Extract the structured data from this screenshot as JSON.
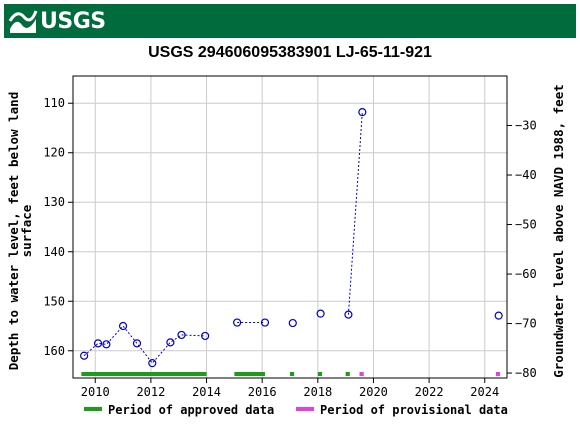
{
  "header": {
    "logo_text": "USGS",
    "banner_color": "#006b3c"
  },
  "chart_data": {
    "type": "scatter",
    "title": "USGS 294606095383901 LJ-65-11-921",
    "ylabel_left_line1": "Depth to water level, feet below land",
    "ylabel_left_line2": "surface",
    "ylabel_right": "Groundwater level above NAVD 1988, feet",
    "xlim": [
      2009.2,
      2024.8
    ],
    "ylim_left": [
      165.5,
      104.5
    ],
    "ylim_right": [
      -81,
      -20
    ],
    "x_ticks": [
      "2010",
      "2012",
      "2014",
      "2016",
      "2018",
      "2020",
      "2022",
      "2024"
    ],
    "y_left_ticks": [
      "110",
      "120",
      "130",
      "140",
      "150",
      "160"
    ],
    "y_right_ticks": [
      "-30",
      "-40",
      "-50",
      "-60",
      "-70",
      "-80"
    ],
    "grid": true,
    "marker_color": "#0000cc",
    "series": [
      {
        "x": [
          2009.6,
          2010.1,
          2010.4,
          2011.0,
          2011.5,
          2012.05,
          2012.7,
          2013.1,
          2013.95,
          2015.1,
          2016.1,
          2017.1,
          2018.1,
          2019.1,
          2019.6,
          2024.5
        ],
        "y": [
          161.0,
          158.5,
          158.7,
          155.0,
          158.5,
          162.5,
          158.3,
          156.8,
          157.0,
          154.3,
          154.3,
          154.4,
          152.5,
          152.7,
          111.8,
          152.9
        ]
      }
    ],
    "connected_segments": [
      [
        0,
        8
      ],
      [
        9,
        10
      ],
      [
        13,
        14
      ]
    ],
    "periods": {
      "approved": {
        "label": "Period of approved data",
        "color": "#1a9e1a",
        "ranges": [
          [
            2009.5,
            2014.0
          ],
          [
            2015.0,
            2016.1
          ],
          [
            2017.0,
            2017.15
          ],
          [
            2018.0,
            2018.15
          ],
          [
            2019.0,
            2019.15
          ]
        ]
      },
      "provisional": {
        "label": "Period of provisional data",
        "color": "#dd44dd",
        "ranges": [
          [
            2019.5,
            2019.65
          ],
          [
            2024.4,
            2024.55
          ]
        ]
      }
    },
    "legend_position": "bottom"
  }
}
